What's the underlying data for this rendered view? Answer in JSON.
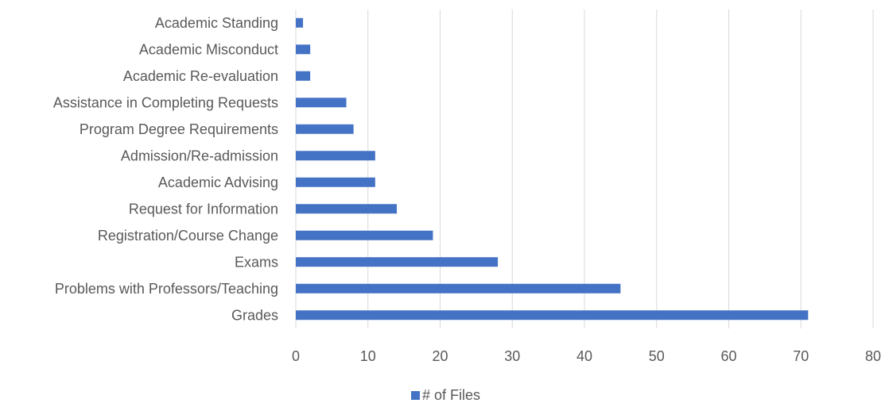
{
  "chart_data": {
    "type": "bar",
    "orientation": "horizontal",
    "categories": [
      "Academic Standing",
      "Academic Misconduct",
      "Academic Re-evaluation",
      "Assistance in Completing Requests",
      "Program Degree Requirements",
      "Admission/Re-admission",
      "Academic Advising",
      "Request for Information",
      "Registration/Course Change",
      "Exams",
      "Problems with Professors/Teaching",
      "Grades"
    ],
    "series": [
      {
        "name": "# of Files",
        "values": [
          1,
          2,
          2,
          7,
          8,
          11,
          11,
          14,
          19,
          28,
          45,
          71
        ],
        "color": "#4472c4"
      }
    ],
    "title": "",
    "xlabel": "",
    "ylabel": "",
    "xlim": [
      0,
      80
    ],
    "x_ticks": [
      0,
      10,
      20,
      30,
      40,
      50,
      60,
      70,
      80
    ],
    "grid": true,
    "legend_position": "bottom"
  }
}
